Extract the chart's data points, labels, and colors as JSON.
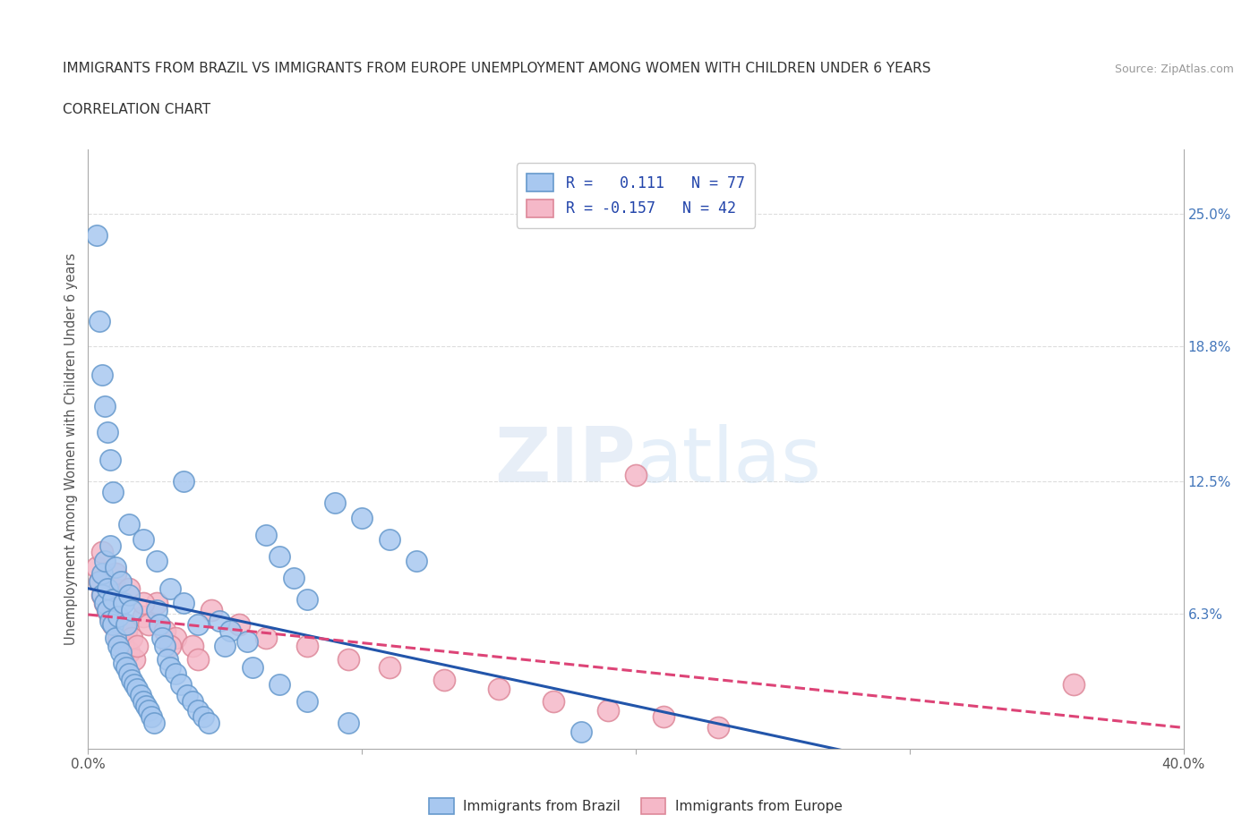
{
  "title_line1": "IMMIGRANTS FROM BRAZIL VS IMMIGRANTS FROM EUROPE UNEMPLOYMENT AMONG WOMEN WITH CHILDREN UNDER 6 YEARS",
  "title_line2": "CORRELATION CHART",
  "source": "Source: ZipAtlas.com",
  "ylabel": "Unemployment Among Women with Children Under 6 years",
  "xlim": [
    0.0,
    0.4
  ],
  "ylim": [
    0.0,
    0.28
  ],
  "xticks": [
    0.0,
    0.1,
    0.2,
    0.3,
    0.4
  ],
  "xticklabels": [
    "0.0%",
    "",
    "",
    "",
    "40.0%"
  ],
  "ytick_right_labels": [
    "25.0%",
    "18.8%",
    "12.5%",
    "6.3%"
  ],
  "ytick_right_values": [
    0.25,
    0.188,
    0.125,
    0.063
  ],
  "brazil_color": "#A8C8F0",
  "brazil_edge": "#6699CC",
  "europe_color": "#F5B8C8",
  "europe_edge": "#DD8899",
  "brazil_R": 0.111,
  "brazil_N": 77,
  "europe_R": -0.157,
  "europe_N": 42,
  "brazil_line_color": "#2255AA",
  "europe_line_color": "#DD4477",
  "grid_color": "#DDDDDD",
  "background_color": "#FFFFFF",
  "brazil_x": [
    0.004,
    0.005,
    0.005,
    0.006,
    0.006,
    0.007,
    0.007,
    0.008,
    0.008,
    0.009,
    0.009,
    0.01,
    0.01,
    0.011,
    0.011,
    0.012,
    0.012,
    0.013,
    0.013,
    0.014,
    0.014,
    0.015,
    0.015,
    0.016,
    0.016,
    0.017,
    0.018,
    0.019,
    0.02,
    0.021,
    0.022,
    0.023,
    0.024,
    0.025,
    0.026,
    0.027,
    0.028,
    0.029,
    0.03,
    0.032,
    0.034,
    0.036,
    0.038,
    0.04,
    0.042,
    0.044,
    0.048,
    0.052,
    0.058,
    0.065,
    0.07,
    0.075,
    0.08,
    0.09,
    0.1,
    0.11,
    0.12,
    0.003,
    0.004,
    0.005,
    0.006,
    0.007,
    0.008,
    0.009,
    0.015,
    0.02,
    0.025,
    0.03,
    0.035,
    0.04,
    0.05,
    0.06,
    0.07,
    0.08,
    0.095,
    0.035,
    0.18
  ],
  "brazil_y": [
    0.078,
    0.072,
    0.082,
    0.068,
    0.088,
    0.065,
    0.075,
    0.06,
    0.095,
    0.058,
    0.07,
    0.052,
    0.085,
    0.048,
    0.062,
    0.045,
    0.078,
    0.04,
    0.068,
    0.038,
    0.058,
    0.035,
    0.072,
    0.032,
    0.065,
    0.03,
    0.028,
    0.025,
    0.022,
    0.02,
    0.018,
    0.015,
    0.012,
    0.065,
    0.058,
    0.052,
    0.048,
    0.042,
    0.038,
    0.035,
    0.03,
    0.025,
    0.022,
    0.018,
    0.015,
    0.012,
    0.06,
    0.055,
    0.05,
    0.1,
    0.09,
    0.08,
    0.07,
    0.115,
    0.108,
    0.098,
    0.088,
    0.24,
    0.2,
    0.175,
    0.16,
    0.148,
    0.135,
    0.12,
    0.105,
    0.098,
    0.088,
    0.075,
    0.068,
    0.058,
    0.048,
    0.038,
    0.03,
    0.022,
    0.012,
    0.125,
    0.008
  ],
  "europe_x": [
    0.003,
    0.004,
    0.005,
    0.006,
    0.007,
    0.008,
    0.009,
    0.01,
    0.011,
    0.012,
    0.013,
    0.014,
    0.015,
    0.016,
    0.017,
    0.018,
    0.02,
    0.022,
    0.025,
    0.028,
    0.032,
    0.038,
    0.045,
    0.055,
    0.065,
    0.08,
    0.095,
    0.11,
    0.13,
    0.15,
    0.17,
    0.19,
    0.21,
    0.23,
    0.005,
    0.01,
    0.015,
    0.02,
    0.03,
    0.04,
    0.36,
    0.2
  ],
  "europe_y": [
    0.085,
    0.078,
    0.072,
    0.068,
    0.065,
    0.062,
    0.058,
    0.075,
    0.052,
    0.058,
    0.048,
    0.055,
    0.045,
    0.052,
    0.042,
    0.048,
    0.062,
    0.058,
    0.068,
    0.055,
    0.052,
    0.048,
    0.065,
    0.058,
    0.052,
    0.048,
    0.042,
    0.038,
    0.032,
    0.028,
    0.022,
    0.018,
    0.015,
    0.01,
    0.092,
    0.082,
    0.075,
    0.068,
    0.048,
    0.042,
    0.03,
    0.128
  ]
}
